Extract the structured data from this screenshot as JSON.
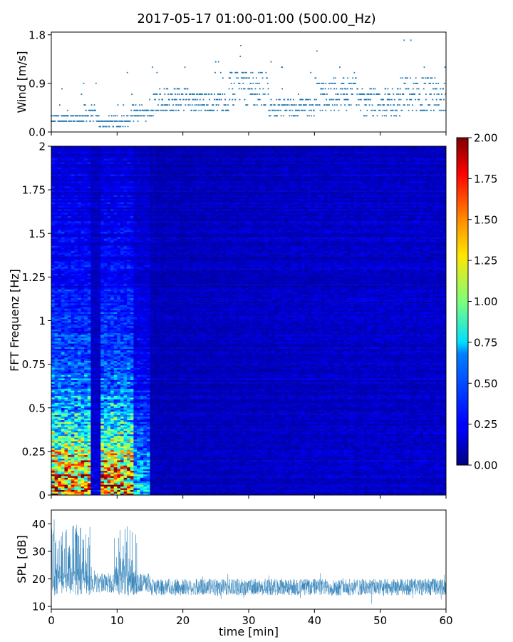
{
  "figure": {
    "title": "2017-05-17 01:00-01:00 (500.00_Hz)"
  },
  "chart_data": [
    {
      "type": "scatter",
      "panel": "wind",
      "ylabel": "Wind [m/s]",
      "xlim": [
        0,
        60
      ],
      "ylim": [
        0,
        1.85
      ],
      "yticks": [
        0.0,
        0.9,
        1.8
      ],
      "ytick_labels": [
        "0.0",
        "0.9",
        "1.8"
      ],
      "marker_color": "#1f77b4",
      "resolution": 0.1,
      "segments": [
        {
          "x": [
            0,
            5
          ],
          "base": 0.25,
          "spread": 0.1
        },
        {
          "x": [
            5,
            7
          ],
          "base": 0.35,
          "spread": 0.15
        },
        {
          "x": [
            7,
            12
          ],
          "base": 0.2,
          "spread": 0.1
        },
        {
          "x": [
            12,
            15.5
          ],
          "base": 0.35,
          "spread": 0.12
        },
        {
          "x": [
            15.5,
            21
          ],
          "base": 0.6,
          "spread": 0.25
        },
        {
          "x": [
            21,
            27
          ],
          "base": 0.55,
          "spread": 0.2
        },
        {
          "x": [
            27,
            33
          ],
          "base": 0.8,
          "spread": 0.35
        },
        {
          "x": [
            33,
            40
          ],
          "base": 0.45,
          "spread": 0.15
        },
        {
          "x": [
            40,
            47
          ],
          "base": 0.7,
          "spread": 0.3
        },
        {
          "x": [
            47,
            53
          ],
          "base": 0.55,
          "spread": 0.25
        },
        {
          "x": [
            53,
            60
          ],
          "base": 0.7,
          "spread": 0.35
        }
      ]
    },
    {
      "type": "heatmap",
      "panel": "spectrogram",
      "ylabel": "FFT Frequenz [Hz]",
      "xlim": [
        0,
        60
      ],
      "ylim": [
        0,
        2
      ],
      "yticks": [
        0,
        0.25,
        0.5,
        0.75,
        1,
        1.25,
        1.5,
        1.75,
        2
      ],
      "ytick_labels": [
        "0",
        "0.25",
        "0.5",
        "0.75",
        "1",
        "1.25",
        "1.5",
        "1.75",
        "2"
      ],
      "colormap": "jet",
      "vmin": 0,
      "vmax": 2,
      "n_time_bins": 120,
      "n_freq_bins": 200,
      "loud_intervals_min": [
        [
          0,
          6
        ],
        [
          7.5,
          12.5
        ]
      ],
      "quiet_gap_min": [
        6,
        7.5
      ],
      "transition_min": [
        12.5,
        15
      ],
      "background_level": 0.12,
      "loud_low_freq_peak": 1.6,
      "colorbar": {
        "ticks": [
          0.0,
          0.25,
          0.5,
          0.75,
          1.0,
          1.25,
          1.5,
          1.75,
          2.0
        ],
        "tick_labels": [
          "0.00",
          "0.25",
          "0.50",
          "0.75",
          "1.00",
          "1.25",
          "1.50",
          "1.75",
          "2.00"
        ]
      }
    },
    {
      "type": "line",
      "panel": "spl",
      "xlabel": "time [min]",
      "ylabel": "SPL [dB]",
      "xlim": [
        0,
        60
      ],
      "ylim": [
        9,
        45
      ],
      "xticks": [
        0,
        10,
        20,
        30,
        40,
        50,
        60
      ],
      "xtick_labels": [
        "0",
        "10",
        "20",
        "30",
        "40",
        "50",
        "60"
      ],
      "yticks": [
        10,
        20,
        30,
        40
      ],
      "ytick_labels": [
        "10",
        "20",
        "30",
        "40"
      ],
      "line_color": "#1f77b4",
      "baseline_db": 17,
      "burst_intervals_min": [
        [
          0,
          6
        ],
        [
          9.5,
          13
        ]
      ],
      "burst_peak_db": 43,
      "noise_range_db": [
        12,
        22
      ]
    }
  ]
}
